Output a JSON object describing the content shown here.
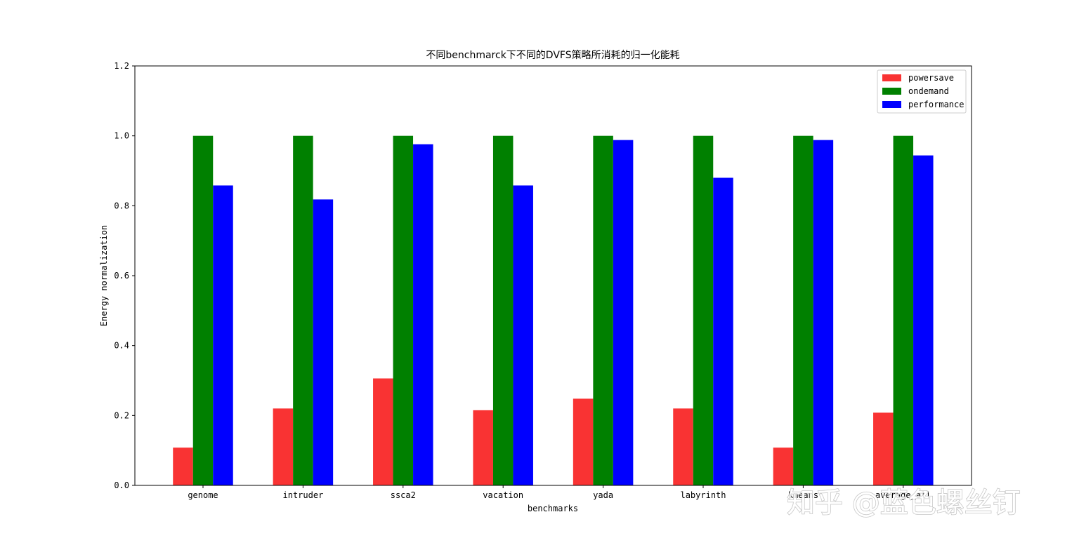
{
  "chart_data": {
    "type": "bar",
    "title": "不同benchmarck下不同的DVFS策略所消耗的归一化能耗",
    "xlabel": "benchmarks",
    "ylabel": "Energy normalization",
    "ylim": [
      0,
      1.2
    ],
    "yticks": [
      "0.0",
      "0.2",
      "0.4",
      "0.6",
      "0.8",
      "1.0",
      "1.2"
    ],
    "categories": [
      "genome",
      "intruder",
      "ssca2",
      "vacation",
      "yada",
      "labyrinth",
      "kmeans",
      "average_all"
    ],
    "series": [
      {
        "name": "powersave",
        "color": "#f93333",
        "values": [
          0.108,
          0.22,
          0.306,
          0.215,
          0.248,
          0.22,
          0.108,
          0.208
        ]
      },
      {
        "name": "ondemand",
        "color": "#008000",
        "values": [
          1.0,
          1.0,
          1.0,
          1.0,
          1.0,
          1.0,
          1.0,
          1.0
        ]
      },
      {
        "name": "performance",
        "color": "#0000ff",
        "values": [
          0.858,
          0.818,
          0.976,
          0.858,
          0.988,
          0.88,
          0.988,
          0.944
        ]
      }
    ],
    "legend_position": "top-right",
    "grid": false
  },
  "watermark": "知乎 @蓝色螺丝钉"
}
